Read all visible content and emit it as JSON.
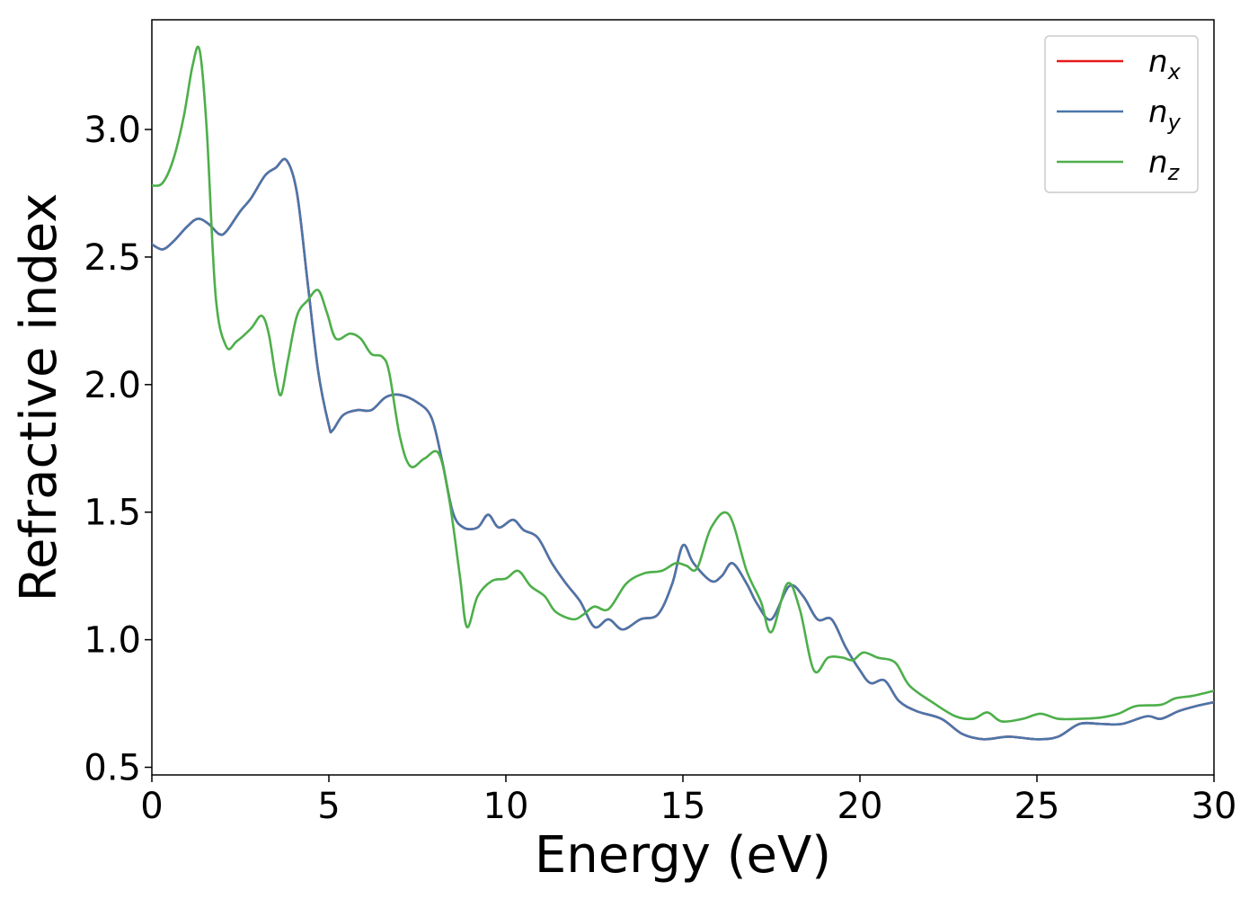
{
  "chart_data": {
    "type": "line",
    "xlabel": "Energy (eV)",
    "ylabel": "Refractive index",
    "xlim": [
      0,
      30
    ],
    "ylim": [
      0.47,
      3.43
    ],
    "x_ticks": [
      "0",
      "5",
      "10",
      "15",
      "20",
      "25",
      "30"
    ],
    "y_ticks": [
      "0.5",
      "1.0",
      "1.5",
      "2.0",
      "2.5",
      "3.0"
    ],
    "grid": false,
    "legend_position": "top-right",
    "series": [
      {
        "name": "n_x",
        "label_base": "n",
        "label_sub": "x",
        "color": "#e41a1c",
        "points": [
          [
            0,
            2.55
          ],
          [
            0.3,
            2.53
          ],
          [
            0.6,
            2.56
          ],
          [
            1.0,
            2.62
          ],
          [
            1.3,
            2.65
          ],
          [
            1.6,
            2.63
          ],
          [
            1.9,
            2.59
          ],
          [
            2.1,
            2.6
          ],
          [
            2.5,
            2.68
          ],
          [
            2.8,
            2.73
          ],
          [
            3.2,
            2.82
          ],
          [
            3.5,
            2.85
          ],
          [
            3.8,
            2.88
          ],
          [
            4.1,
            2.75
          ],
          [
            4.4,
            2.4
          ],
          [
            4.7,
            2.05
          ],
          [
            5.0,
            1.84
          ],
          [
            5.1,
            1.82
          ],
          [
            5.4,
            1.88
          ],
          [
            5.8,
            1.9
          ],
          [
            6.2,
            1.9
          ],
          [
            6.6,
            1.95
          ],
          [
            7.0,
            1.96
          ],
          [
            7.5,
            1.93
          ],
          [
            7.9,
            1.87
          ],
          [
            8.2,
            1.7
          ],
          [
            8.5,
            1.5
          ],
          [
            8.8,
            1.44
          ],
          [
            9.2,
            1.44
          ],
          [
            9.5,
            1.49
          ],
          [
            9.8,
            1.44
          ],
          [
            10.2,
            1.47
          ],
          [
            10.5,
            1.43
          ],
          [
            10.9,
            1.4
          ],
          [
            11.3,
            1.3
          ],
          [
            11.7,
            1.22
          ],
          [
            12.1,
            1.15
          ],
          [
            12.5,
            1.05
          ],
          [
            12.9,
            1.08
          ],
          [
            13.3,
            1.04
          ],
          [
            13.8,
            1.08
          ],
          [
            14.3,
            1.1
          ],
          [
            14.7,
            1.22
          ],
          [
            15.0,
            1.37
          ],
          [
            15.3,
            1.3
          ],
          [
            15.8,
            1.23
          ],
          [
            16.1,
            1.25
          ],
          [
            16.4,
            1.3
          ],
          [
            16.8,
            1.22
          ],
          [
            17.1,
            1.14
          ],
          [
            17.5,
            1.08
          ],
          [
            18.0,
            1.21
          ],
          [
            18.4,
            1.17
          ],
          [
            18.8,
            1.08
          ],
          [
            19.2,
            1.08
          ],
          [
            19.6,
            0.97
          ],
          [
            20.0,
            0.88
          ],
          [
            20.3,
            0.83
          ],
          [
            20.7,
            0.84
          ],
          [
            21.1,
            0.76
          ],
          [
            21.6,
            0.72
          ],
          [
            22.3,
            0.69
          ],
          [
            22.9,
            0.63
          ],
          [
            23.5,
            0.61
          ],
          [
            24.2,
            0.62
          ],
          [
            25.0,
            0.61
          ],
          [
            25.6,
            0.62
          ],
          [
            26.2,
            0.67
          ],
          [
            26.8,
            0.67
          ],
          [
            27.4,
            0.67
          ],
          [
            28.1,
            0.7
          ],
          [
            28.5,
            0.69
          ],
          [
            29.0,
            0.72
          ],
          [
            29.5,
            0.74
          ],
          [
            30,
            0.755
          ]
        ]
      },
      {
        "name": "n_y",
        "label_base": "n",
        "label_sub": "y",
        "color": "#4a76aa",
        "points": [
          [
            0,
            2.55
          ],
          [
            0.3,
            2.53
          ],
          [
            0.6,
            2.56
          ],
          [
            1.0,
            2.62
          ],
          [
            1.3,
            2.65
          ],
          [
            1.6,
            2.63
          ],
          [
            1.9,
            2.59
          ],
          [
            2.1,
            2.6
          ],
          [
            2.5,
            2.68
          ],
          [
            2.8,
            2.73
          ],
          [
            3.2,
            2.82
          ],
          [
            3.5,
            2.85
          ],
          [
            3.8,
            2.88
          ],
          [
            4.1,
            2.75
          ],
          [
            4.4,
            2.4
          ],
          [
            4.7,
            2.05
          ],
          [
            5.0,
            1.84
          ],
          [
            5.1,
            1.82
          ],
          [
            5.4,
            1.88
          ],
          [
            5.8,
            1.9
          ],
          [
            6.2,
            1.9
          ],
          [
            6.6,
            1.95
          ],
          [
            7.0,
            1.96
          ],
          [
            7.5,
            1.93
          ],
          [
            7.9,
            1.87
          ],
          [
            8.2,
            1.7
          ],
          [
            8.5,
            1.5
          ],
          [
            8.8,
            1.44
          ],
          [
            9.2,
            1.44
          ],
          [
            9.5,
            1.49
          ],
          [
            9.8,
            1.44
          ],
          [
            10.2,
            1.47
          ],
          [
            10.5,
            1.43
          ],
          [
            10.9,
            1.4
          ],
          [
            11.3,
            1.3
          ],
          [
            11.7,
            1.22
          ],
          [
            12.1,
            1.15
          ],
          [
            12.5,
            1.05
          ],
          [
            12.9,
            1.08
          ],
          [
            13.3,
            1.04
          ],
          [
            13.8,
            1.08
          ],
          [
            14.3,
            1.1
          ],
          [
            14.7,
            1.22
          ],
          [
            15.0,
            1.37
          ],
          [
            15.3,
            1.3
          ],
          [
            15.8,
            1.23
          ],
          [
            16.1,
            1.25
          ],
          [
            16.4,
            1.3
          ],
          [
            16.8,
            1.22
          ],
          [
            17.1,
            1.14
          ],
          [
            17.5,
            1.08
          ],
          [
            18.0,
            1.21
          ],
          [
            18.4,
            1.17
          ],
          [
            18.8,
            1.08
          ],
          [
            19.2,
            1.08
          ],
          [
            19.6,
            0.97
          ],
          [
            20.0,
            0.88
          ],
          [
            20.3,
            0.83
          ],
          [
            20.7,
            0.84
          ],
          [
            21.1,
            0.76
          ],
          [
            21.6,
            0.72
          ],
          [
            22.3,
            0.69
          ],
          [
            22.9,
            0.63
          ],
          [
            23.5,
            0.61
          ],
          [
            24.2,
            0.62
          ],
          [
            25.0,
            0.61
          ],
          [
            25.6,
            0.62
          ],
          [
            26.2,
            0.67
          ],
          [
            26.8,
            0.67
          ],
          [
            27.4,
            0.67
          ],
          [
            28.1,
            0.7
          ],
          [
            28.5,
            0.69
          ],
          [
            29.0,
            0.72
          ],
          [
            29.5,
            0.74
          ],
          [
            30,
            0.755
          ]
        ]
      },
      {
        "name": "n_z",
        "label_base": "n",
        "label_sub": "z",
        "color": "#4daf4a",
        "points": [
          [
            0,
            2.78
          ],
          [
            0.3,
            2.79
          ],
          [
            0.6,
            2.88
          ],
          [
            0.9,
            3.05
          ],
          [
            1.15,
            3.25
          ],
          [
            1.35,
            3.31
          ],
          [
            1.55,
            3.0
          ],
          [
            1.8,
            2.35
          ],
          [
            2.1,
            2.15
          ],
          [
            2.4,
            2.17
          ],
          [
            2.8,
            2.22
          ],
          [
            3.1,
            2.27
          ],
          [
            3.3,
            2.2
          ],
          [
            3.5,
            2.03
          ],
          [
            3.65,
            1.96
          ],
          [
            3.85,
            2.1
          ],
          [
            4.1,
            2.27
          ],
          [
            4.4,
            2.33
          ],
          [
            4.7,
            2.37
          ],
          [
            4.95,
            2.28
          ],
          [
            5.2,
            2.18
          ],
          [
            5.6,
            2.2
          ],
          [
            5.9,
            2.18
          ],
          [
            6.2,
            2.12
          ],
          [
            6.5,
            2.11
          ],
          [
            6.7,
            2.05
          ],
          [
            7.0,
            1.8
          ],
          [
            7.3,
            1.68
          ],
          [
            7.7,
            1.71
          ],
          [
            8.1,
            1.73
          ],
          [
            8.4,
            1.55
          ],
          [
            8.7,
            1.25
          ],
          [
            8.9,
            1.05
          ],
          [
            9.2,
            1.17
          ],
          [
            9.6,
            1.23
          ],
          [
            10.0,
            1.24
          ],
          [
            10.35,
            1.27
          ],
          [
            10.7,
            1.21
          ],
          [
            11.1,
            1.17
          ],
          [
            11.4,
            1.11
          ],
          [
            11.9,
            1.08
          ],
          [
            12.2,
            1.1
          ],
          [
            12.5,
            1.13
          ],
          [
            12.9,
            1.12
          ],
          [
            13.4,
            1.22
          ],
          [
            13.9,
            1.26
          ],
          [
            14.4,
            1.27
          ],
          [
            14.8,
            1.3
          ],
          [
            15.1,
            1.29
          ],
          [
            15.4,
            1.28
          ],
          [
            15.8,
            1.44
          ],
          [
            16.3,
            1.49
          ],
          [
            16.8,
            1.27
          ],
          [
            17.2,
            1.15
          ],
          [
            17.5,
            1.03
          ],
          [
            17.95,
            1.22
          ],
          [
            18.3,
            1.12
          ],
          [
            18.7,
            0.88
          ],
          [
            19.1,
            0.93
          ],
          [
            19.5,
            0.93
          ],
          [
            19.8,
            0.92
          ],
          [
            20.1,
            0.95
          ],
          [
            20.5,
            0.93
          ],
          [
            21.0,
            0.91
          ],
          [
            21.4,
            0.82
          ],
          [
            22.1,
            0.75
          ],
          [
            22.7,
            0.7
          ],
          [
            23.2,
            0.69
          ],
          [
            23.6,
            0.715
          ],
          [
            24.0,
            0.68
          ],
          [
            24.6,
            0.69
          ],
          [
            25.1,
            0.71
          ],
          [
            25.6,
            0.69
          ],
          [
            26.2,
            0.69
          ],
          [
            26.8,
            0.695
          ],
          [
            27.3,
            0.71
          ],
          [
            27.8,
            0.74
          ],
          [
            28.5,
            0.745
          ],
          [
            28.9,
            0.77
          ],
          [
            29.4,
            0.78
          ],
          [
            30,
            0.8
          ]
        ]
      }
    ]
  }
}
